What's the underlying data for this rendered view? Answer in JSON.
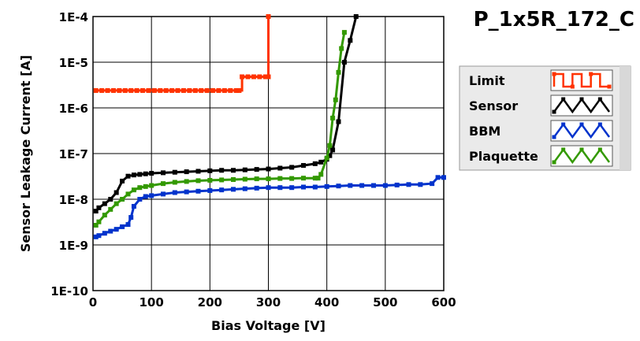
{
  "chart_data": {
    "type": "line",
    "title": "P_1x5R_172_C",
    "xlabel": "Bias Voltage [V]",
    "ylabel": "Sensor Leakage Current [A]",
    "xlim": [
      0,
      600
    ],
    "ylim": [
      1e-10,
      0.0001
    ],
    "yscale": "log",
    "grid": true,
    "legend_position": "right",
    "x_ticks": [
      0,
      100,
      200,
      300,
      400,
      500,
      600
    ],
    "x_tick_labels": [
      "0",
      "100",
      "200",
      "300",
      "400",
      "500",
      "600"
    ],
    "y_ticks": [
      1e-10,
      1e-09,
      1e-08,
      1e-07,
      1e-06,
      1e-05,
      0.0001
    ],
    "y_tick_labels": [
      "1E-10",
      "1E-9",
      "1E-8",
      "1E-7",
      "1E-6",
      "1E-5",
      "1E-4"
    ],
    "series": [
      {
        "name": "Limit",
        "color": "#ff3300",
        "step": true,
        "x": [
          5,
          15,
          25,
          35,
          45,
          55,
          65,
          75,
          85,
          95,
          105,
          115,
          125,
          135,
          145,
          155,
          165,
          175,
          185,
          195,
          205,
          215,
          225,
          235,
          245,
          250,
          255,
          265,
          275,
          285,
          295,
          300,
          300
        ],
        "y": [
          2.4e-06,
          2.4e-06,
          2.4e-06,
          2.4e-06,
          2.4e-06,
          2.4e-06,
          2.4e-06,
          2.4e-06,
          2.4e-06,
          2.4e-06,
          2.4e-06,
          2.4e-06,
          2.4e-06,
          2.4e-06,
          2.4e-06,
          2.4e-06,
          2.4e-06,
          2.4e-06,
          2.4e-06,
          2.4e-06,
          2.4e-06,
          2.4e-06,
          2.4e-06,
          2.4e-06,
          2.4e-06,
          2.4e-06,
          4.8e-06,
          4.8e-06,
          4.8e-06,
          4.8e-06,
          4.8e-06,
          4.8e-06,
          0.0001
        ]
      },
      {
        "name": "Sensor",
        "color": "#000000",
        "step": false,
        "x": [
          5,
          10,
          20,
          30,
          40,
          50,
          60,
          70,
          80,
          90,
          100,
          120,
          140,
          160,
          180,
          200,
          220,
          240,
          260,
          280,
          300,
          320,
          340,
          360,
          380,
          390,
          400,
          405,
          410,
          420,
          430,
          440,
          450
        ],
        "y": [
          5.5e-09,
          6.5e-09,
          8e-09,
          1e-08,
          1.4e-08,
          2.5e-08,
          3.2e-08,
          3.4e-08,
          3.5e-08,
          3.6e-08,
          3.7e-08,
          3.8e-08,
          3.9e-08,
          4e-08,
          4.1e-08,
          4.2e-08,
          4.3e-08,
          4.3e-08,
          4.4e-08,
          4.5e-08,
          4.6e-08,
          4.8e-08,
          5e-08,
          5.5e-08,
          6e-08,
          6.5e-08,
          7.5e-08,
          9e-08,
          1.2e-07,
          5e-07,
          1e-05,
          3e-05,
          0.0001
        ]
      },
      {
        "name": "BBM",
        "color": "#0033cc",
        "step": false,
        "x": [
          5,
          10,
          20,
          30,
          40,
          50,
          60,
          65,
          70,
          80,
          90,
          100,
          120,
          140,
          160,
          180,
          200,
          220,
          240,
          260,
          280,
          300,
          320,
          340,
          360,
          380,
          400,
          420,
          440,
          460,
          480,
          500,
          520,
          540,
          560,
          580,
          590,
          600
        ],
        "y": [
          1.5e-09,
          1.6e-09,
          1.8e-09,
          2e-09,
          2.2e-09,
          2.5e-09,
          2.8e-09,
          4e-09,
          7e-09,
          1e-08,
          1.15e-08,
          1.2e-08,
          1.3e-08,
          1.4e-08,
          1.45e-08,
          1.5e-08,
          1.55e-08,
          1.6e-08,
          1.65e-08,
          1.7e-08,
          1.75e-08,
          1.8e-08,
          1.8e-08,
          1.8e-08,
          1.85e-08,
          1.85e-08,
          1.9e-08,
          1.95e-08,
          2e-08,
          2e-08,
          2e-08,
          2e-08,
          2.05e-08,
          2.1e-08,
          2.1e-08,
          2.2e-08,
          3e-08,
          3e-08
        ]
      },
      {
        "name": "Plaquette",
        "color": "#339900",
        "step": false,
        "x": [
          5,
          10,
          20,
          30,
          40,
          50,
          60,
          70,
          80,
          90,
          100,
          120,
          140,
          160,
          180,
          200,
          220,
          240,
          260,
          280,
          300,
          320,
          340,
          360,
          380,
          385,
          390,
          400,
          405,
          410,
          415,
          420,
          425,
          430
        ],
        "y": [
          2.7e-09,
          3.2e-09,
          4.5e-09,
          6e-09,
          8e-09,
          1e-08,
          1.3e-08,
          1.6e-08,
          1.8e-08,
          1.9e-08,
          2e-08,
          2.2e-08,
          2.35e-08,
          2.45e-08,
          2.55e-08,
          2.6e-08,
          2.65e-08,
          2.7e-08,
          2.75e-08,
          2.8e-08,
          2.8e-08,
          2.85e-08,
          2.85e-08,
          2.9e-08,
          2.9e-08,
          2.9e-08,
          3.5e-08,
          8e-08,
          1.5e-07,
          6e-07,
          1.5e-06,
          6e-06,
          2e-05,
          4.5e-05
        ]
      }
    ]
  }
}
